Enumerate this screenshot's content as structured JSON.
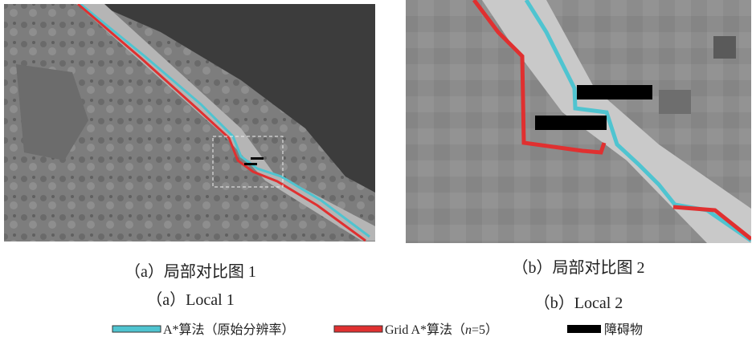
{
  "figure": {
    "panels": [
      {
        "caption_cn": "（a）局部对比图 1",
        "caption_en": "（a）Local 1"
      },
      {
        "caption_cn": "（b）局部对比图 2",
        "caption_en": "（b）Local 2"
      }
    ],
    "legend": [
      {
        "label": "A*算法（原始分辨率）"
      },
      {
        "label_prefix": "Grid A*算法（",
        "label_var": "n",
        "label_suffix": "=5）"
      },
      {
        "label": "障碍物"
      }
    ]
  }
}
